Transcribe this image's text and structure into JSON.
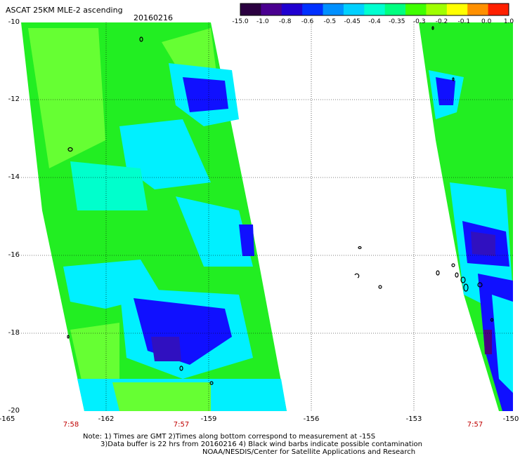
{
  "title": "ASCAT 25KM MLE-2 ascending",
  "date": "20160216",
  "colorbar": {
    "labels": [
      "-15.0",
      "-1.0",
      "-0.8",
      "-0.6",
      "-0.5",
      "-0.45",
      "-0.4",
      "-0.35",
      "-0.3",
      "-0.2",
      "-0.1",
      "0.0",
      "1.0"
    ],
    "colors": [
      "#2a0040",
      "#4a0090",
      "#2000d0",
      "#0030ff",
      "#0090ff",
      "#00d0ff",
      "#00ffd0",
      "#00ff80",
      "#40ff00",
      "#a0ff00",
      "#ffff00",
      "#ff9000",
      "#ff2000"
    ]
  },
  "axes": {
    "y_ticks": [
      "-10",
      "-12",
      "-14",
      "-16",
      "-18",
      "-20"
    ],
    "x_ticks": [
      "-165",
      "-162",
      "-159",
      "-156",
      "-153",
      "-150"
    ]
  },
  "times": [
    "7:58",
    "7:57",
    "7:57"
  ],
  "notes": [
    "Note: 1) Times are GMT 2)Times along bottom correspond to measurement at -15S",
    "3)Data buffer is 22 hrs from 20160216 4) Black wind barbs indicate possible contamination",
    "NOAA/NESDIS/Center for Satellite Applications and Research"
  ],
  "palette": {
    "green": "#22ee22",
    "lime": "#66ff33",
    "cyan": "#00f0ff",
    "aqua": "#00ffcc",
    "blue": "#1010ff",
    "dark_blue": "#3010c0",
    "purple": "#4a0080"
  }
}
